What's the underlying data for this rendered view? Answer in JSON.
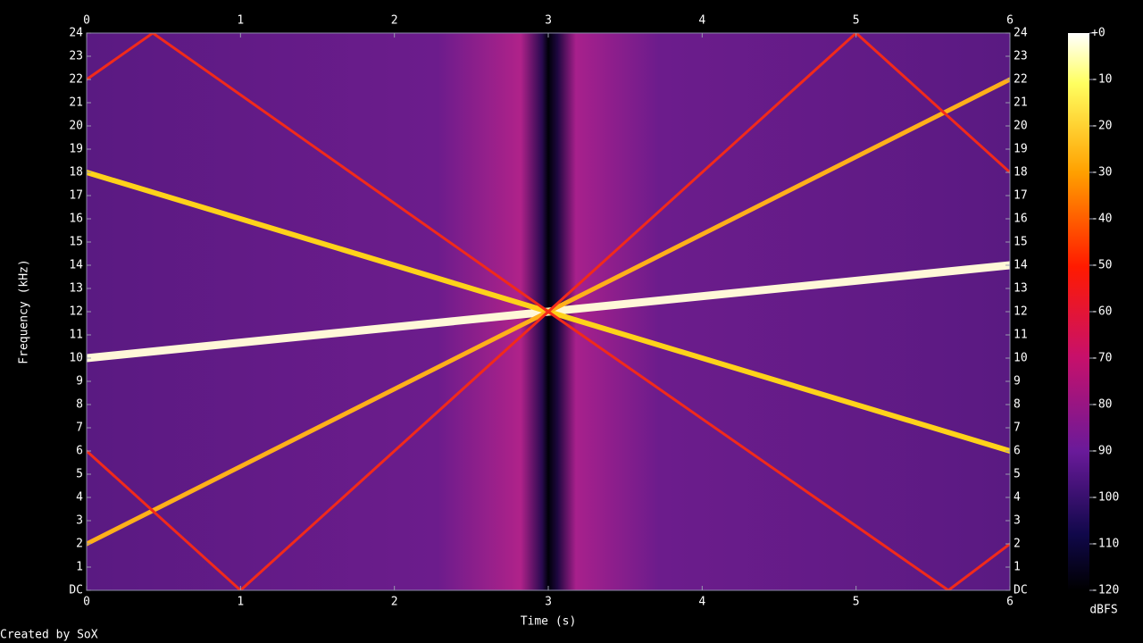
{
  "chart_data": {
    "type": "line",
    "x_label": "Time (s)",
    "y_label": "Frequency (kHz)",
    "colorbar_label": "dBFS",
    "footer": "Created by SoX",
    "xlim": [
      0,
      6
    ],
    "xticks": [
      0,
      1,
      2,
      3,
      4,
      5,
      6
    ],
    "ylim": [
      0,
      24
    ],
    "yticks": [
      {
        "value": 0,
        "label": "DC"
      },
      1,
      2,
      3,
      4,
      5,
      6,
      7,
      8,
      9,
      10,
      11,
      12,
      13,
      14,
      15,
      16,
      17,
      18,
      19,
      20,
      21,
      22,
      23,
      24
    ],
    "clim": [
      -120,
      0
    ],
    "cticks": [
      {
        "value": 0,
        "label": "+0"
      },
      -10,
      -20,
      -30,
      -40,
      -50,
      -60,
      -70,
      -80,
      -90,
      -100,
      -110,
      -120
    ],
    "series": [
      {
        "color": "#fff8d8",
        "x": [
          0,
          3,
          6
        ],
        "values": [
          10,
          12,
          14
        ]
      },
      {
        "color": "#ffd21a",
        "x": [
          0,
          3,
          6
        ],
        "values": [
          18,
          12,
          6
        ]
      },
      {
        "color": "#ffb01a",
        "x": [
          0,
          3,
          6
        ],
        "values": [
          2,
          12,
          22
        ]
      },
      {
        "color": "#f22a1a",
        "x": [
          0,
          0.43,
          3
        ],
        "values": [
          22,
          24,
          12
        ]
      },
      {
        "color": "#f22a1a",
        "x": [
          0,
          1,
          3
        ],
        "values": [
          6,
          0,
          12
        ]
      },
      {
        "color": "#f22a1a",
        "x": [
          3,
          5,
          6
        ],
        "values": [
          12,
          24,
          18
        ]
      },
      {
        "color": "#f22a1a",
        "x": [
          3,
          5.6,
          6
        ],
        "values": [
          12,
          0,
          2
        ]
      }
    ]
  }
}
